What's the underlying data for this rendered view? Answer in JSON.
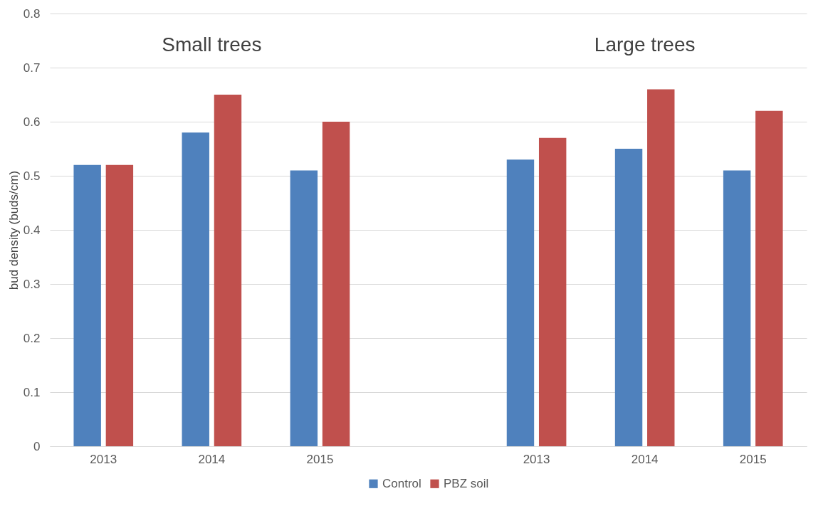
{
  "chart_data": {
    "type": "bar",
    "ylabel": "bud density (buds/cm)",
    "categories": [
      "2013",
      "2014",
      "2015",
      null,
      "2013",
      "2014",
      "2015"
    ],
    "series": [
      {
        "name": "Control",
        "color": "#4f81bd",
        "values": [
          0.52,
          0.58,
          0.51,
          null,
          0.53,
          0.55,
          0.51
        ]
      },
      {
        "name": "PBZ soil",
        "color": "#c0504d",
        "values": [
          0.52,
          0.65,
          0.6,
          null,
          0.57,
          0.66,
          0.62
        ]
      }
    ],
    "annotations": [
      "Small trees",
      "Large trees"
    ],
    "ylim": [
      0,
      0.8
    ],
    "yticks": [
      0,
      0.1,
      0.2,
      0.3,
      0.4,
      0.5,
      0.6,
      0.7,
      0.8
    ],
    "grid": "y",
    "legend": "bottom"
  }
}
